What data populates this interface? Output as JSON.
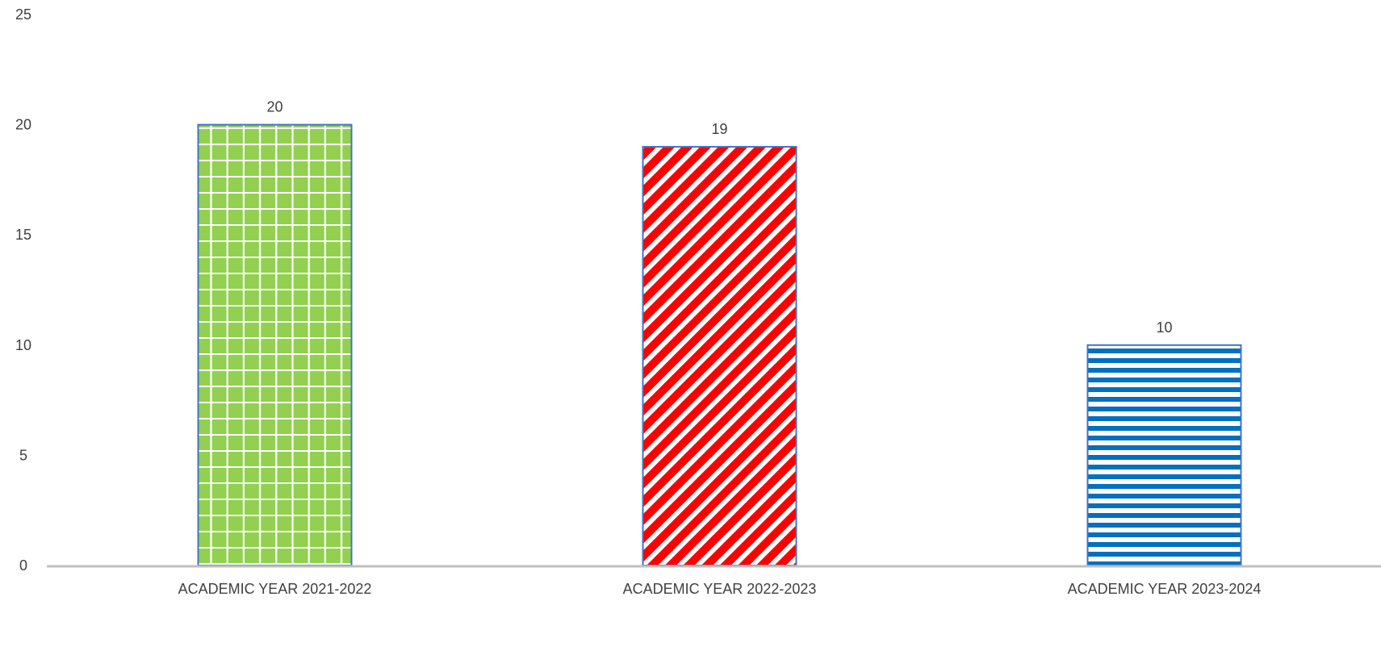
{
  "chart_data": {
    "type": "bar",
    "categories": [
      "ACADEMIC YEAR 2021-2022",
      "ACADEMIC YEAR 2022-2023",
      "ACADEMIC YEAR 2023-2024"
    ],
    "values": [
      20,
      19,
      10
    ],
    "data_labels": [
      "20",
      "19",
      "10"
    ],
    "ylim": [
      0,
      25
    ],
    "yticks": [
      "0",
      "5",
      "10",
      "15",
      "20",
      "25"
    ],
    "title": "",
    "xlabel": "",
    "ylabel": "",
    "grid": false,
    "legend": "none",
    "bar_fills": [
      {
        "pattern": "grid",
        "base": "#92d050",
        "line": "#ffffff",
        "border": "#4472c4"
      },
      {
        "pattern": "diagonal",
        "base": "#ff0000",
        "line": "#ffffff",
        "border": "#4472c4"
      },
      {
        "pattern": "horizontal",
        "base": "#0070c0",
        "line": "#ffffff",
        "border": "#4472c4"
      }
    ],
    "axis_color": "#bfbfbf"
  }
}
